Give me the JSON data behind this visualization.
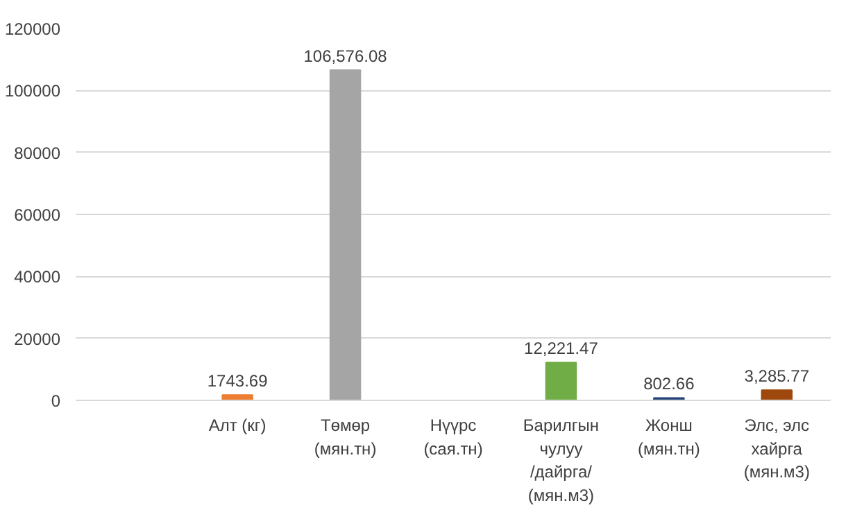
{
  "chart_data": {
    "type": "bar",
    "categories": [
      null,
      "Алт (кг)",
      "Төмөр (мян.тн)",
      "Нүүрс (сая.тн)",
      "Барилгын чулуу /дайрга/ (мян.м3)",
      "Жонш (мян.тн)",
      "Элс, элс хайрга (мян.м3)"
    ],
    "values": [
      null,
      1743.69,
      106576.08,
      null,
      12221.47,
      802.66,
      3285.77
    ],
    "colors": [
      "#a5a5a5",
      "#ed7d31",
      "#a5a5a5",
      "#ffc000",
      "#70ad47",
      "#264478",
      "#9e480e"
    ],
    "value_labels": [
      null,
      "1743.69",
      "106,576.08",
      null,
      "12,221.47",
      "802.66",
      "3,285.77"
    ],
    "ylim": [
      0,
      120000
    ],
    "yticks": [
      0,
      20000,
      40000,
      60000,
      80000,
      100000,
      120000
    ],
    "grid": "y"
  }
}
